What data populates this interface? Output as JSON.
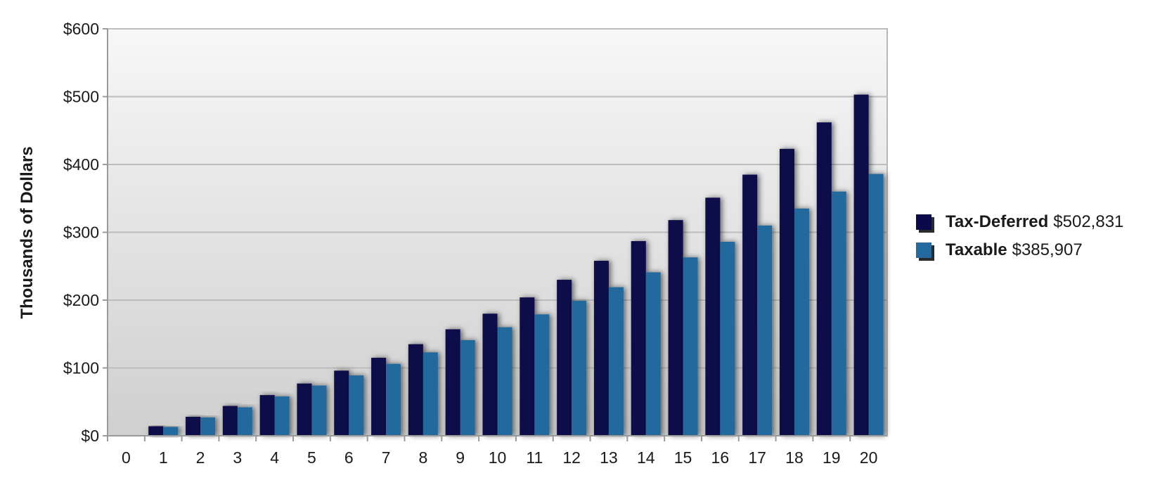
{
  "chart_data": {
    "type": "bar",
    "ylabel": "Thousands of Dollars",
    "xlabel": "",
    "categories": [
      "0",
      "1",
      "2",
      "3",
      "4",
      "5",
      "6",
      "7",
      "8",
      "9",
      "10",
      "11",
      "12",
      "13",
      "14",
      "15",
      "16",
      "17",
      "18",
      "19",
      "20"
    ],
    "series": [
      {
        "name": "Tax-Deferred",
        "amount_label": "$502,831",
        "color": "#0a0a4a",
        "values": [
          0,
          14,
          28,
          44,
          60,
          77,
          96,
          115,
          135,
          157,
          180,
          204,
          230,
          258,
          287,
          318,
          351,
          385,
          423,
          462,
          503
        ]
      },
      {
        "name": "Taxable",
        "amount_label": "$385,907",
        "color": "#236a9e",
        "values": [
          0,
          13,
          27,
          42,
          58,
          74,
          89,
          106,
          123,
          141,
          160,
          179,
          199,
          219,
          241,
          263,
          286,
          310,
          335,
          360,
          386
        ]
      }
    ],
    "ylim": [
      0,
      600
    ],
    "yticks": [
      0,
      100,
      200,
      300,
      400,
      500,
      600
    ],
    "ytick_labels": [
      "$0",
      "$100",
      "$200",
      "$300",
      "$400",
      "$500",
      "$600"
    ],
    "grid": true,
    "legend_position": "right"
  }
}
